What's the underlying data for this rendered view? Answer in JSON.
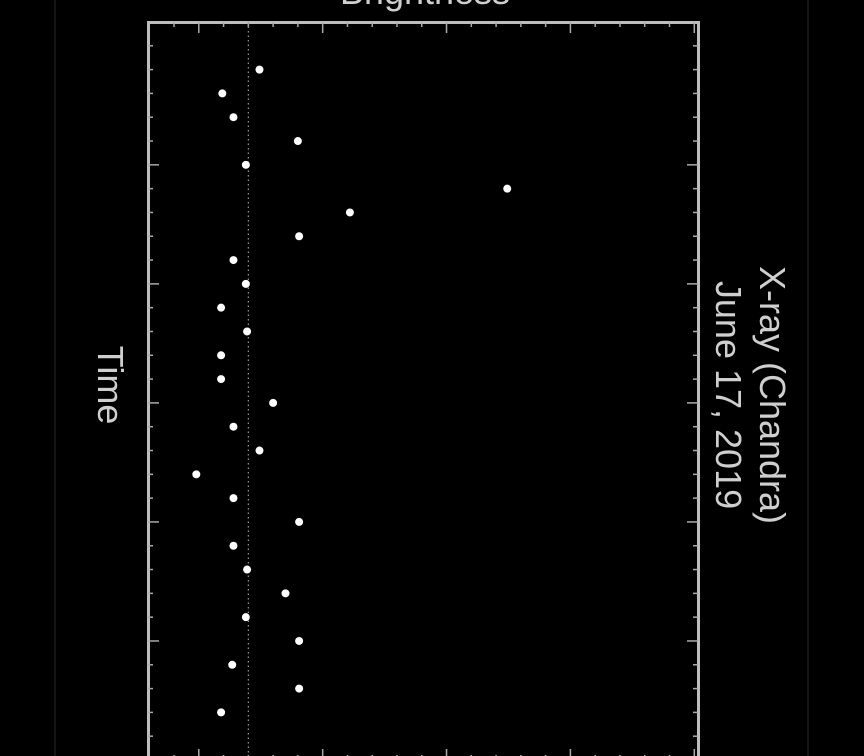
{
  "chart_data": {
    "type": "scatter",
    "title": "X-ray (Chandra)",
    "subtitle": "June 17, 2019",
    "x_label": "Brightness",
    "y_label": "Time",
    "x": [
      1.49,
      1.19,
      1.28,
      1.8,
      1.38,
      3.49,
      2.22,
      1.81,
      1.28,
      1.38,
      1.18,
      1.39,
      1.18,
      1.18,
      1.6,
      1.28,
      1.49,
      0.98,
      1.28,
      1.81,
      1.28,
      1.39,
      1.7,
      1.38,
      1.81,
      1.27,
      1.81,
      1.18
    ],
    "y": [
      1,
      2,
      3,
      4,
      5,
      6,
      7,
      8,
      9,
      10,
      11,
      12,
      13,
      14,
      15,
      16,
      17,
      18,
      19,
      20,
      21,
      22,
      23,
      24,
      25,
      26,
      27,
      28
    ],
    "color": "#ffffff",
    "reference_line": 1.4,
    "xlim": [
      0.59,
      5.03
    ],
    "ylim": [
      -1,
      30
    ],
    "y_reversed": true,
    "xticks": [
      1,
      2,
      3,
      4,
      5
    ],
    "xminorticks": [
      0.8,
      1.2,
      1.4,
      1.6,
      1.8,
      2.2,
      2.4,
      2.6,
      2.8,
      3.2,
      3.4,
      3.6,
      3.8,
      4.2,
      4.4,
      4.6,
      4.8
    ],
    "yticks": [
      5,
      10,
      15,
      20,
      25
    ],
    "yminorticks": [
      0,
      1,
      2,
      3,
      4,
      6,
      7,
      8,
      9,
      11,
      12,
      13,
      14,
      16,
      17,
      18,
      19,
      21,
      22,
      23,
      24,
      26,
      27,
      28,
      29
    ],
    "grid": false
  }
}
